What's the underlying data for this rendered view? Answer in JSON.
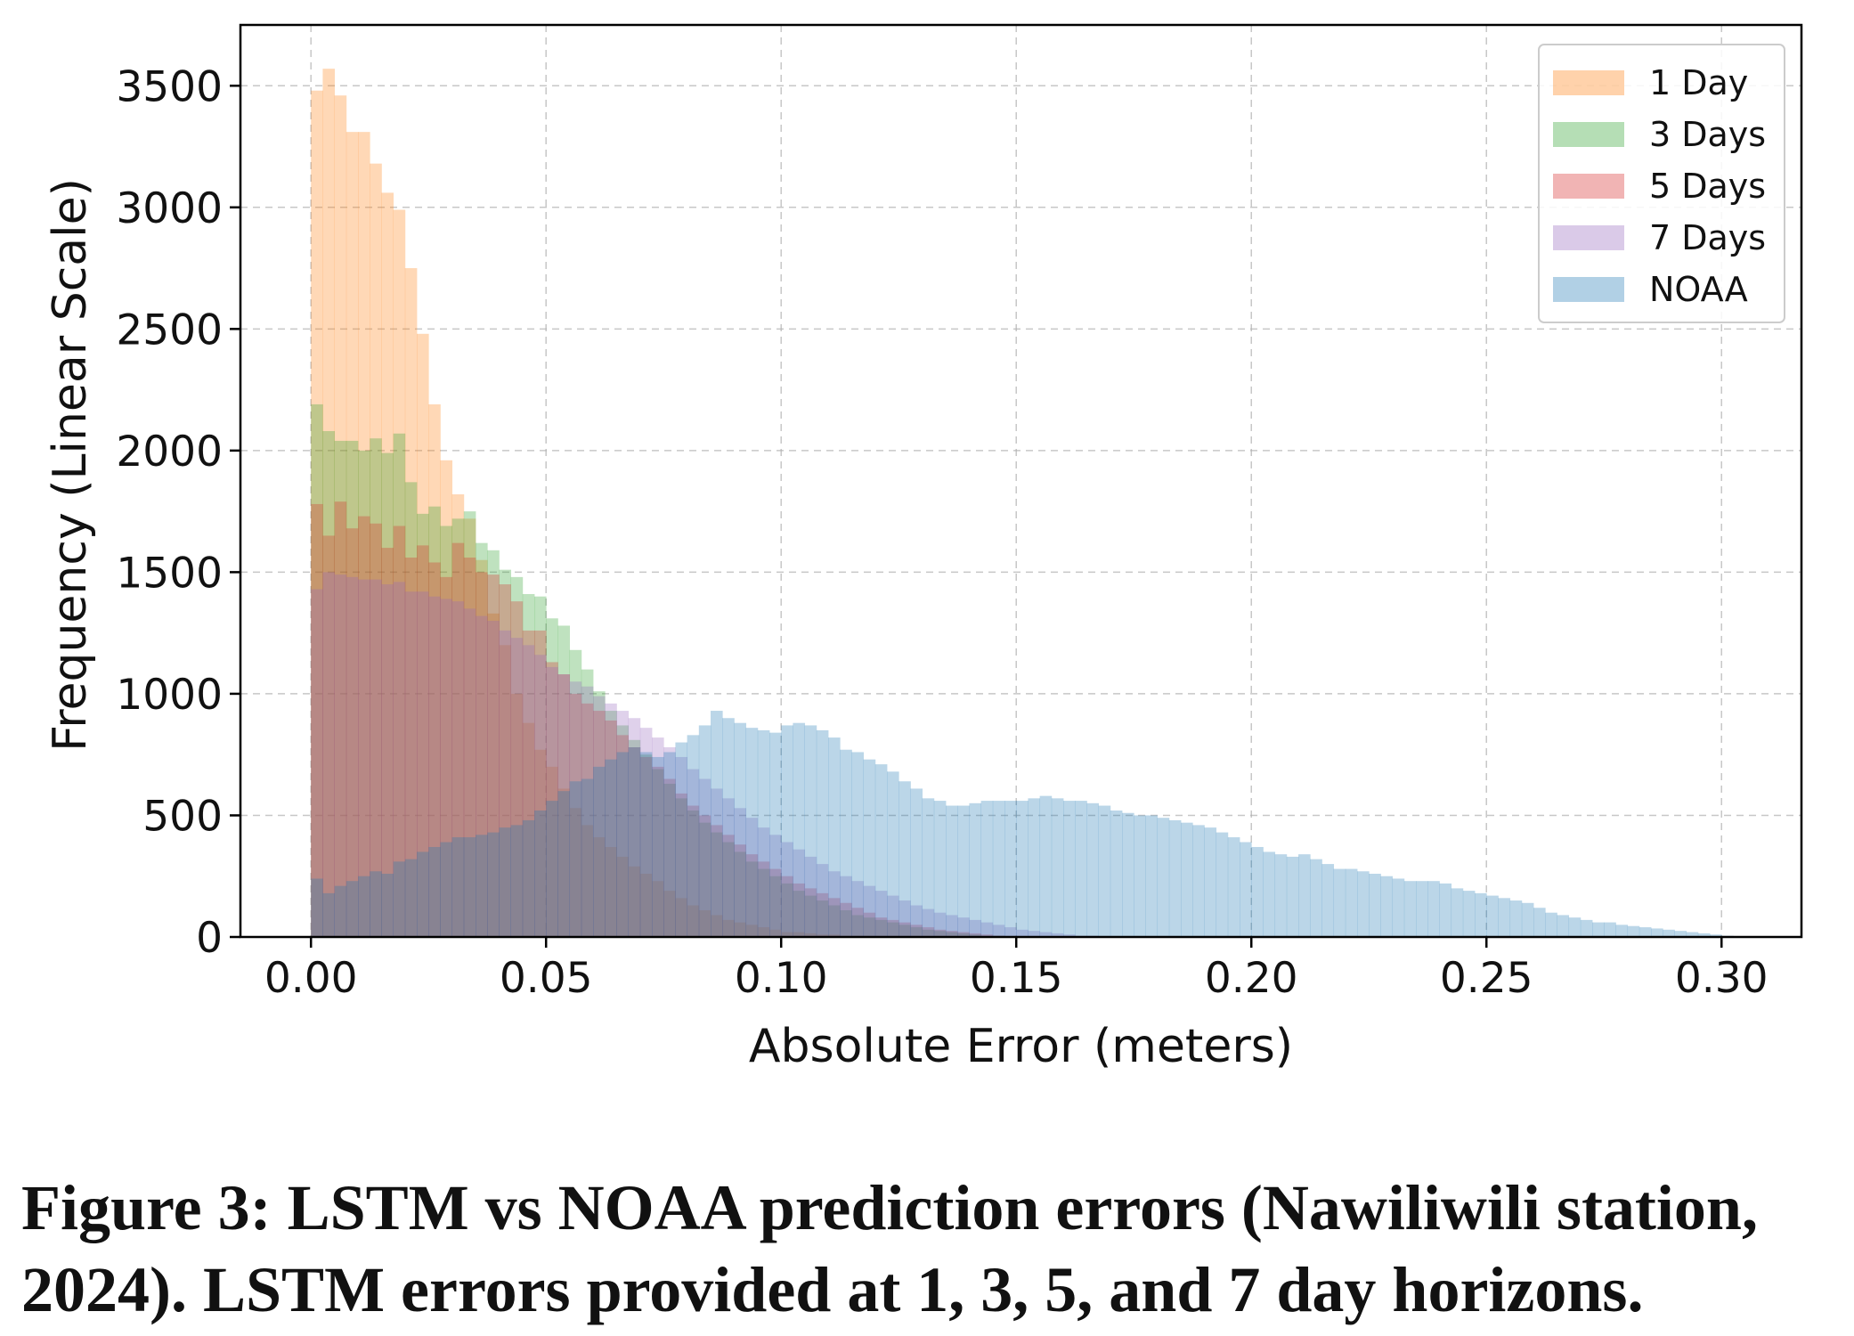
{
  "chart_data": {
    "type": "histogram",
    "xlabel": "Absolute Error (meters)",
    "ylabel": "Frequency (Linear Scale)",
    "xlim": [
      -0.015,
      0.317
    ],
    "ylim": [
      0,
      3750
    ],
    "xticks": [
      0.0,
      0.05,
      0.1,
      0.15,
      0.2,
      0.25,
      0.3
    ],
    "xtick_labels": [
      "0.00",
      "0.05",
      "0.10",
      "0.15",
      "0.20",
      "0.25",
      "0.30"
    ],
    "yticks": [
      0,
      500,
      1000,
      1500,
      2000,
      2500,
      3000,
      3500
    ],
    "ytick_labels": [
      "0",
      "500",
      "1000",
      "1500",
      "2000",
      "2500",
      "3000",
      "3500"
    ],
    "grid": true,
    "legend_position": "top-right",
    "series": [
      {
        "name": "1 Day",
        "color": "#ff7f0e",
        "opacity": 0.3,
        "bin_start": 0.0,
        "bin_width": 0.0025,
        "values": [
          3480,
          3570,
          3460,
          3310,
          3310,
          3180,
          3060,
          2990,
          2750,
          2480,
          2190,
          1960,
          1820,
          1720,
          1550,
          1330,
          1200,
          1000,
          880,
          770,
          700,
          610,
          530,
          460,
          410,
          370,
          330,
          290,
          260,
          230,
          190,
          160,
          130,
          110,
          90,
          70,
          60,
          50,
          40,
          30,
          20,
          20,
          15,
          10,
          10,
          5,
          5
        ]
      },
      {
        "name": "3 Days",
        "color": "#2ca02c",
        "opacity": 0.3,
        "bin_start": 0.0,
        "bin_width": 0.0025,
        "values": [
          2190,
          2080,
          2040,
          2040,
          2000,
          2050,
          1990,
          2070,
          1870,
          1740,
          1770,
          1690,
          1720,
          1750,
          1620,
          1590,
          1510,
          1480,
          1410,
          1400,
          1310,
          1280,
          1180,
          1100,
          1010,
          930,
          870,
          810,
          750,
          690,
          630,
          570,
          520,
          470,
          430,
          390,
          350,
          310,
          280,
          250,
          220,
          190,
          170,
          150,
          130,
          110,
          90,
          80,
          70,
          60,
          50,
          40,
          30,
          25,
          20,
          15,
          10,
          5,
          5
        ]
      },
      {
        "name": "5 Days",
        "color": "#d62728",
        "opacity": 0.3,
        "bin_start": 0.0,
        "bin_width": 0.0025,
        "values": [
          1780,
          1650,
          1790,
          1680,
          1730,
          1700,
          1600,
          1690,
          1560,
          1610,
          1540,
          1480,
          1620,
          1560,
          1500,
          1490,
          1450,
          1380,
          1260,
          1260,
          1130,
          1080,
          1000,
          960,
          930,
          890,
          830,
          780,
          740,
          700,
          650,
          590,
          540,
          500,
          460,
          420,
          380,
          340,
          310,
          280,
          250,
          220,
          200,
          180,
          160,
          140,
          120,
          100,
          80,
          70,
          60,
          50,
          40,
          30,
          25,
          20,
          15,
          10,
          5
        ]
      },
      {
        "name": "7 Days",
        "color": "#9467bd",
        "opacity": 0.3,
        "bin_start": 0.0,
        "bin_width": 0.0025,
        "values": [
          1430,
          1500,
          1490,
          1480,
          1470,
          1470,
          1450,
          1460,
          1420,
          1420,
          1400,
          1390,
          1380,
          1350,
          1320,
          1300,
          1260,
          1230,
          1200,
          1160,
          1110,
          1080,
          1050,
          1030,
          990,
          960,
          930,
          900,
          860,
          820,
          780,
          740,
          690,
          650,
          610,
          570,
          530,
          490,
          450,
          420,
          390,
          360,
          330,
          300,
          270,
          250,
          230,
          210,
          190,
          170,
          150,
          130,
          115,
          100,
          90,
          80,
          70,
          60,
          50,
          40,
          30,
          25,
          20,
          15,
          10,
          5,
          5
        ]
      },
      {
        "name": "NOAA",
        "color": "#1f77b4",
        "opacity": 0.3,
        "bin_start": 0.0,
        "bin_width": 0.0025,
        "values": [
          240,
          180,
          210,
          230,
          250,
          270,
          260,
          310,
          320,
          350,
          370,
          390,
          410,
          410,
          420,
          430,
          450,
          460,
          480,
          520,
          560,
          600,
          640,
          650,
          700,
          730,
          760,
          780,
          760,
          740,
          760,
          800,
          830,
          870,
          930,
          900,
          880,
          860,
          850,
          840,
          870,
          880,
          870,
          850,
          820,
          770,
          760,
          730,
          710,
          680,
          640,
          610,
          570,
          560,
          540,
          540,
          550,
          560,
          560,
          560,
          560,
          570,
          580,
          570,
          560,
          560,
          550,
          540,
          520,
          510,
          500,
          500,
          490,
          480,
          470,
          460,
          450,
          430,
          410,
          390,
          370,
          350,
          340,
          330,
          340,
          320,
          300,
          280,
          280,
          270,
          260,
          250,
          240,
          230,
          230,
          230,
          220,
          200,
          190,
          180,
          170,
          160,
          150,
          140,
          120,
          100,
          90,
          80,
          70,
          60,
          60,
          50,
          45,
          40,
          35,
          30,
          25,
          20,
          15,
          10,
          5
        ]
      }
    ]
  },
  "caption": {
    "line1": "Figure 3: LSTM vs NOAA prediction errors (Nawiliwili station,",
    "line2": "2024). LSTM errors provided at 1, 3, 5, and 7 day horizons."
  }
}
